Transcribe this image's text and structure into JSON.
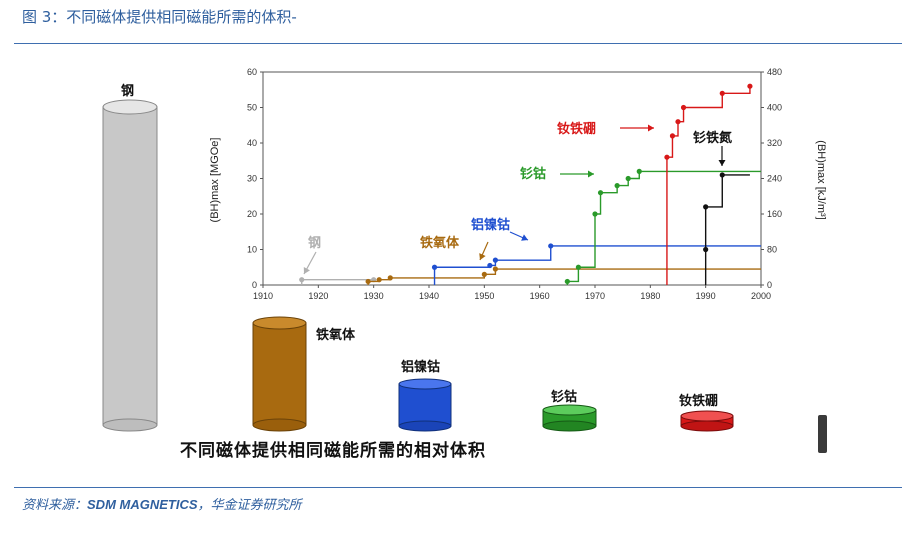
{
  "figure_title": "图 3：不同磁体提供相同磁能所需的体积-",
  "source": {
    "prefix": "资料来源：",
    "en": "SDM MAGNETICS",
    "suffix": "，华金证券研究所"
  },
  "caption": "不同磁体提供相同磁能所需的相对体积",
  "cylinder_labels": {
    "steel": "钢",
    "ferrite": "铁氧体",
    "alnico": "铝镍钴",
    "smco": "钐钴",
    "ndfeb": "钕铁硼"
  },
  "colors": {
    "steel": "#b0b0b0",
    "ferrite": "#a86a10",
    "alnico": "#1f4fd0",
    "smco": "#2a9a2a",
    "ndfeb": "#d81818",
    "smfen": "#111111"
  },
  "chart_data": {
    "type": "line",
    "x_ticks": [
      "1910",
      "1920",
      "1930",
      "1940",
      "1950",
      "1960",
      "1970",
      "1980",
      "1990",
      "2000"
    ],
    "xlim": [
      1910,
      2000
    ],
    "ylabel_left": "(BH)max [MGOe]",
    "ylabel_right": "(BH)max [kJ/m³]",
    "y_ticks_left": [
      "0",
      "10",
      "20",
      "30",
      "40",
      "50",
      "60"
    ],
    "y_ticks_right": [
      "0",
      "80",
      "160",
      "240",
      "320",
      "400",
      "480"
    ],
    "ylim": [
      0,
      60
    ],
    "series": [
      {
        "name": "钢",
        "key": "steel",
        "points": [
          [
            1917,
            1.5
          ],
          [
            1930,
            1.5
          ]
        ],
        "end": 1930
      },
      {
        "name": "铁氧体",
        "key": "ferrite",
        "points": [
          [
            1929,
            1
          ],
          [
            1931,
            1.5
          ],
          [
            1933,
            2
          ],
          [
            1950,
            3
          ],
          [
            1952,
            4.5
          ]
        ],
        "end": 2000
      },
      {
        "name": "铝镍钴",
        "key": "alnico",
        "points": [
          [
            1941,
            5
          ],
          [
            1951,
            5.5
          ],
          [
            1952,
            7
          ],
          [
            1962,
            11
          ]
        ],
        "end": 2000
      },
      {
        "name": "钐钴",
        "key": "smco",
        "points": [
          [
            1965,
            1
          ],
          [
            1967,
            5
          ],
          [
            1970,
            20
          ],
          [
            1971,
            26
          ],
          [
            1974,
            28
          ],
          [
            1976,
            30
          ],
          [
            1978,
            32
          ]
        ],
        "end": 2000
      },
      {
        "name": "钕铁硼",
        "key": "ndfeb",
        "points": [
          [
            1983,
            36
          ],
          [
            1984,
            42
          ],
          [
            1985,
            46
          ],
          [
            1986,
            50
          ],
          [
            1993,
            54
          ],
          [
            1998,
            56
          ]
        ],
        "end": 1998
      },
      {
        "name": "钐铁氮",
        "key": "smfen",
        "points": [
          [
            1990,
            10
          ],
          [
            1990,
            22
          ],
          [
            1993,
            31
          ]
        ],
        "end": 1998
      }
    ],
    "annotations": [
      {
        "text": "钢",
        "key": "steel"
      },
      {
        "text": "铁氧体",
        "key": "ferrite"
      },
      {
        "text": "铝镍钴",
        "key": "alnico"
      },
      {
        "text": "钐钴",
        "key": "smco"
      },
      {
        "text": "钕铁硼",
        "key": "ndfeb"
      },
      {
        "text": "钐铁氮",
        "key": "smfen"
      }
    ]
  }
}
